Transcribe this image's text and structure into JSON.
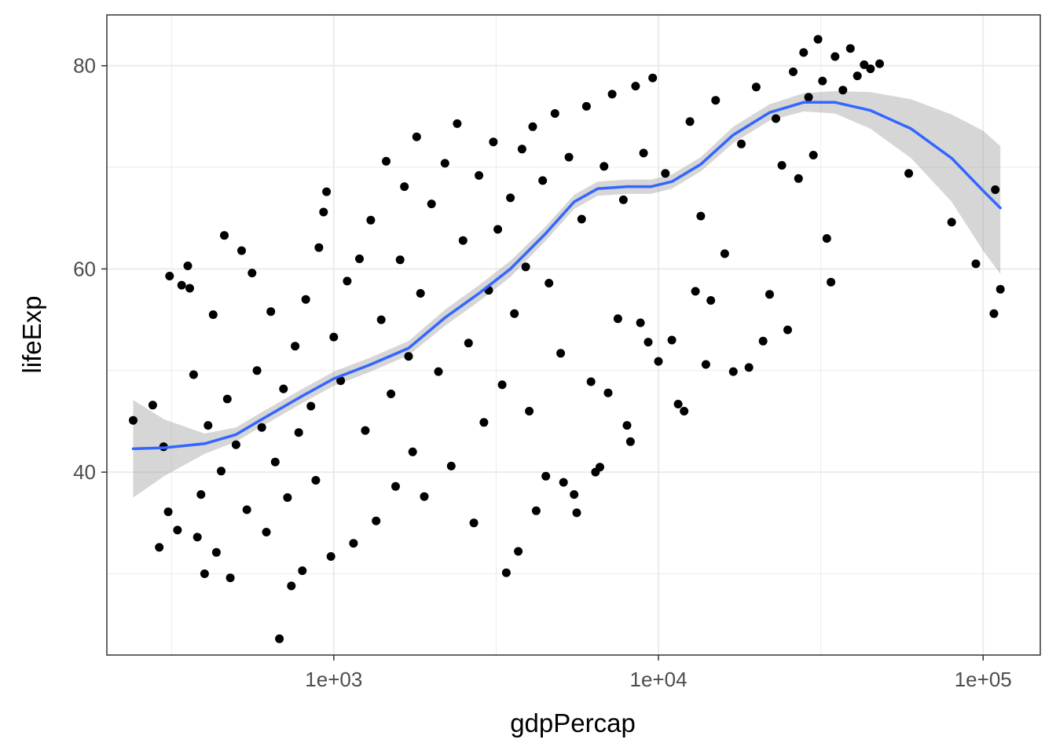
{
  "chart_data": {
    "type": "scatter",
    "xlabel": "gdpPercap",
    "ylabel": "lifeExp",
    "x_scale": "log10",
    "xlim": [
      200,
      150000
    ],
    "ylim": [
      22,
      85
    ],
    "x_ticks": [
      {
        "value": 1000,
        "label": "1e+03"
      },
      {
        "value": 10000,
        "label": "1e+04"
      },
      {
        "value": 100000,
        "label": "1e+05"
      }
    ],
    "y_ticks": [
      {
        "value": 40,
        "label": "40"
      },
      {
        "value": 60,
        "label": "60"
      },
      {
        "value": 80,
        "label": "80"
      }
    ],
    "grid": true,
    "colors": {
      "points": "#000000",
      "smooth_line": "#3366FF",
      "confidence_band": "#999999",
      "grid": "#ebebeb",
      "panel_border": "#333333"
    },
    "points": [
      {
        "x": 241,
        "y": 45.1
      },
      {
        "x": 277,
        "y": 46.6
      },
      {
        "x": 299,
        "y": 42.5
      },
      {
        "x": 309,
        "y": 36.1
      },
      {
        "x": 312,
        "y": 59.3
      },
      {
        "x": 290,
        "y": 32.6
      },
      {
        "x": 330,
        "y": 34.3
      },
      {
        "x": 340,
        "y": 58.4
      },
      {
        "x": 355,
        "y": 60.3
      },
      {
        "x": 360,
        "y": 58.1
      },
      {
        "x": 370,
        "y": 49.6
      },
      {
        "x": 380,
        "y": 33.6
      },
      {
        "x": 390,
        "y": 37.8
      },
      {
        "x": 400,
        "y": 30.0
      },
      {
        "x": 410,
        "y": 44.6
      },
      {
        "x": 425,
        "y": 55.5
      },
      {
        "x": 435,
        "y": 32.1
      },
      {
        "x": 450,
        "y": 40.1
      },
      {
        "x": 460,
        "y": 63.3
      },
      {
        "x": 470,
        "y": 47.2
      },
      {
        "x": 480,
        "y": 29.6
      },
      {
        "x": 500,
        "y": 42.7
      },
      {
        "x": 520,
        "y": 61.8
      },
      {
        "x": 540,
        "y": 36.3
      },
      {
        "x": 560,
        "y": 59.6
      },
      {
        "x": 580,
        "y": 50.0
      },
      {
        "x": 600,
        "y": 44.4
      },
      {
        "x": 620,
        "y": 34.1
      },
      {
        "x": 640,
        "y": 55.8
      },
      {
        "x": 660,
        "y": 41.0
      },
      {
        "x": 680,
        "y": 23.6
      },
      {
        "x": 700,
        "y": 48.2
      },
      {
        "x": 720,
        "y": 37.5
      },
      {
        "x": 740,
        "y": 28.8
      },
      {
        "x": 760,
        "y": 52.4
      },
      {
        "x": 780,
        "y": 43.9
      },
      {
        "x": 800,
        "y": 30.3
      },
      {
        "x": 820,
        "y": 57.0
      },
      {
        "x": 850,
        "y": 46.5
      },
      {
        "x": 880,
        "y": 39.2
      },
      {
        "x": 900,
        "y": 62.1
      },
      {
        "x": 930,
        "y": 65.6
      },
      {
        "x": 950,
        "y": 67.6
      },
      {
        "x": 980,
        "y": 31.7
      },
      {
        "x": 1000,
        "y": 53.3
      },
      {
        "x": 1050,
        "y": 49.0
      },
      {
        "x": 1100,
        "y": 58.8
      },
      {
        "x": 1150,
        "y": 33.0
      },
      {
        "x": 1200,
        "y": 61.0
      },
      {
        "x": 1250,
        "y": 44.1
      },
      {
        "x": 1300,
        "y": 64.8
      },
      {
        "x": 1350,
        "y": 35.2
      },
      {
        "x": 1400,
        "y": 55.0
      },
      {
        "x": 1450,
        "y": 70.6
      },
      {
        "x": 1500,
        "y": 47.7
      },
      {
        "x": 1550,
        "y": 38.6
      },
      {
        "x": 1600,
        "y": 60.9
      },
      {
        "x": 1650,
        "y": 68.1
      },
      {
        "x": 1700,
        "y": 51.4
      },
      {
        "x": 1750,
        "y": 42.0
      },
      {
        "x": 1800,
        "y": 73.0
      },
      {
        "x": 1850,
        "y": 57.6
      },
      {
        "x": 1900,
        "y": 37.6
      },
      {
        "x": 2000,
        "y": 66.4
      },
      {
        "x": 2100,
        "y": 49.9
      },
      {
        "x": 2200,
        "y": 70.4
      },
      {
        "x": 2300,
        "y": 40.6
      },
      {
        "x": 2400,
        "y": 74.3
      },
      {
        "x": 2500,
        "y": 62.8
      },
      {
        "x": 2600,
        "y": 52.7
      },
      {
        "x": 2700,
        "y": 35.0
      },
      {
        "x": 2800,
        "y": 69.2
      },
      {
        "x": 2900,
        "y": 44.9
      },
      {
        "x": 3000,
        "y": 57.9
      },
      {
        "x": 3100,
        "y": 72.5
      },
      {
        "x": 3200,
        "y": 63.9
      },
      {
        "x": 3300,
        "y": 48.6
      },
      {
        "x": 3400,
        "y": 30.1
      },
      {
        "x": 3500,
        "y": 67.0
      },
      {
        "x": 3600,
        "y": 55.6
      },
      {
        "x": 3700,
        "y": 32.2
      },
      {
        "x": 3800,
        "y": 71.8
      },
      {
        "x": 3900,
        "y": 60.2
      },
      {
        "x": 4000,
        "y": 46.0
      },
      {
        "x": 4100,
        "y": 74.0
      },
      {
        "x": 4200,
        "y": 36.2
      },
      {
        "x": 4400,
        "y": 68.7
      },
      {
        "x": 4500,
        "y": 39.6
      },
      {
        "x": 4600,
        "y": 58.6
      },
      {
        "x": 4800,
        "y": 75.3
      },
      {
        "x": 5000,
        "y": 51.7
      },
      {
        "x": 5100,
        "y": 39.0
      },
      {
        "x": 5300,
        "y": 71.0
      },
      {
        "x": 5500,
        "y": 37.8
      },
      {
        "x": 5600,
        "y": 36.0
      },
      {
        "x": 5800,
        "y": 64.9
      },
      {
        "x": 6000,
        "y": 76.0
      },
      {
        "x": 6200,
        "y": 48.9
      },
      {
        "x": 6400,
        "y": 40.0
      },
      {
        "x": 6600,
        "y": 40.5
      },
      {
        "x": 6800,
        "y": 70.1
      },
      {
        "x": 7000,
        "y": 47.8
      },
      {
        "x": 7200,
        "y": 77.2
      },
      {
        "x": 7500,
        "y": 55.1
      },
      {
        "x": 7800,
        "y": 66.8
      },
      {
        "x": 8000,
        "y": 44.6
      },
      {
        "x": 8200,
        "y": 43.0
      },
      {
        "x": 8500,
        "y": 78.0
      },
      {
        "x": 8800,
        "y": 54.7
      },
      {
        "x": 9000,
        "y": 71.4
      },
      {
        "x": 9300,
        "y": 52.8
      },
      {
        "x": 9600,
        "y": 78.8
      },
      {
        "x": 10000,
        "y": 50.9
      },
      {
        "x": 10500,
        "y": 69.4
      },
      {
        "x": 11000,
        "y": 53.0
      },
      {
        "x": 11500,
        "y": 46.7
      },
      {
        "x": 12000,
        "y": 46.0
      },
      {
        "x": 12500,
        "y": 74.5
      },
      {
        "x": 13000,
        "y": 57.8
      },
      {
        "x": 13500,
        "y": 65.2
      },
      {
        "x": 14000,
        "y": 50.6
      },
      {
        "x": 14500,
        "y": 56.9
      },
      {
        "x": 15000,
        "y": 76.6
      },
      {
        "x": 16000,
        "y": 61.5
      },
      {
        "x": 17000,
        "y": 49.9
      },
      {
        "x": 18000,
        "y": 72.3
      },
      {
        "x": 19000,
        "y": 50.3
      },
      {
        "x": 20000,
        "y": 77.9
      },
      {
        "x": 21000,
        "y": 52.9
      },
      {
        "x": 22000,
        "y": 57.5
      },
      {
        "x": 23000,
        "y": 74.8
      },
      {
        "x": 24000,
        "y": 70.2
      },
      {
        "x": 25000,
        "y": 54.0
      },
      {
        "x": 26000,
        "y": 79.4
      },
      {
        "x": 27000,
        "y": 68.9
      },
      {
        "x": 28000,
        "y": 81.3
      },
      {
        "x": 29000,
        "y": 76.9
      },
      {
        "x": 30000,
        "y": 71.2
      },
      {
        "x": 31000,
        "y": 82.6
      },
      {
        "x": 32000,
        "y": 78.5
      },
      {
        "x": 33000,
        "y": 63.0
      },
      {
        "x": 34000,
        "y": 58.7
      },
      {
        "x": 35000,
        "y": 80.9
      },
      {
        "x": 37000,
        "y": 77.6
      },
      {
        "x": 39000,
        "y": 81.7
      },
      {
        "x": 41000,
        "y": 79.0
      },
      {
        "x": 43000,
        "y": 80.1
      },
      {
        "x": 45000,
        "y": 79.7
      },
      {
        "x": 48000,
        "y": 80.2
      },
      {
        "x": 59000,
        "y": 69.4
      },
      {
        "x": 80000,
        "y": 64.6
      },
      {
        "x": 95000,
        "y": 60.5
      },
      {
        "x": 108000,
        "y": 55.6
      },
      {
        "x": 109000,
        "y": 67.8
      },
      {
        "x": 113000,
        "y": 58.0
      }
    ],
    "smooth": [
      {
        "x": 241,
        "y": 42.3
      },
      {
        "x": 300,
        "y": 42.4
      },
      {
        "x": 400,
        "y": 42.8
      },
      {
        "x": 500,
        "y": 43.7
      },
      {
        "x": 600,
        "y": 45.2
      },
      {
        "x": 800,
        "y": 47.5
      },
      {
        "x": 1000,
        "y": 49.2
      },
      {
        "x": 1300,
        "y": 50.6
      },
      {
        "x": 1700,
        "y": 52.2
      },
      {
        "x": 2200,
        "y": 55.2
      },
      {
        "x": 2800,
        "y": 57.6
      },
      {
        "x": 3500,
        "y": 60.0
      },
      {
        "x": 4500,
        "y": 63.5
      },
      {
        "x": 5500,
        "y": 66.6
      },
      {
        "x": 6500,
        "y": 67.9
      },
      {
        "x": 8000,
        "y": 68.1
      },
      {
        "x": 9500,
        "y": 68.1
      },
      {
        "x": 11000,
        "y": 68.6
      },
      {
        "x": 13500,
        "y": 70.3
      },
      {
        "x": 17000,
        "y": 73.2
      },
      {
        "x": 22000,
        "y": 75.4
      },
      {
        "x": 28000,
        "y": 76.4
      },
      {
        "x": 35000,
        "y": 76.4
      },
      {
        "x": 45000,
        "y": 75.6
      },
      {
        "x": 60000,
        "y": 73.8
      },
      {
        "x": 80000,
        "y": 70.9
      },
      {
        "x": 100000,
        "y": 67.7
      },
      {
        "x": 113000,
        "y": 66.0
      }
    ],
    "band": [
      {
        "x": 241,
        "lo": 37.5,
        "hi": 47.1
      },
      {
        "x": 300,
        "lo": 39.6,
        "hi": 45.2
      },
      {
        "x": 400,
        "lo": 41.8,
        "hi": 43.8
      },
      {
        "x": 500,
        "lo": 43.0,
        "hi": 44.4
      },
      {
        "x": 600,
        "lo": 44.5,
        "hi": 45.9
      },
      {
        "x": 800,
        "lo": 46.8,
        "hi": 48.2
      },
      {
        "x": 1000,
        "lo": 48.5,
        "hi": 49.9
      },
      {
        "x": 1300,
        "lo": 49.9,
        "hi": 51.3
      },
      {
        "x": 1700,
        "lo": 51.5,
        "hi": 52.9
      },
      {
        "x": 2200,
        "lo": 54.4,
        "hi": 56.0
      },
      {
        "x": 2800,
        "lo": 56.8,
        "hi": 58.4
      },
      {
        "x": 3500,
        "lo": 59.2,
        "hi": 60.8
      },
      {
        "x": 4500,
        "lo": 62.8,
        "hi": 64.2
      },
      {
        "x": 5500,
        "lo": 65.9,
        "hi": 67.3
      },
      {
        "x": 6500,
        "lo": 67.2,
        "hi": 68.6
      },
      {
        "x": 8000,
        "lo": 67.4,
        "hi": 68.8
      },
      {
        "x": 9500,
        "lo": 67.4,
        "hi": 68.8
      },
      {
        "x": 11000,
        "lo": 67.9,
        "hi": 69.3
      },
      {
        "x": 13500,
        "lo": 69.6,
        "hi": 71.0
      },
      {
        "x": 17000,
        "lo": 72.4,
        "hi": 74.0
      },
      {
        "x": 22000,
        "lo": 74.6,
        "hi": 76.2
      },
      {
        "x": 28000,
        "lo": 75.5,
        "hi": 77.3
      },
      {
        "x": 35000,
        "lo": 75.3,
        "hi": 77.5
      },
      {
        "x": 45000,
        "lo": 73.8,
        "hi": 77.4
      },
      {
        "x": 60000,
        "lo": 70.9,
        "hi": 76.7
      },
      {
        "x": 80000,
        "lo": 66.6,
        "hi": 75.2
      },
      {
        "x": 100000,
        "lo": 61.8,
        "hi": 73.6
      },
      {
        "x": 113000,
        "lo": 59.5,
        "hi": 72.1
      }
    ]
  }
}
